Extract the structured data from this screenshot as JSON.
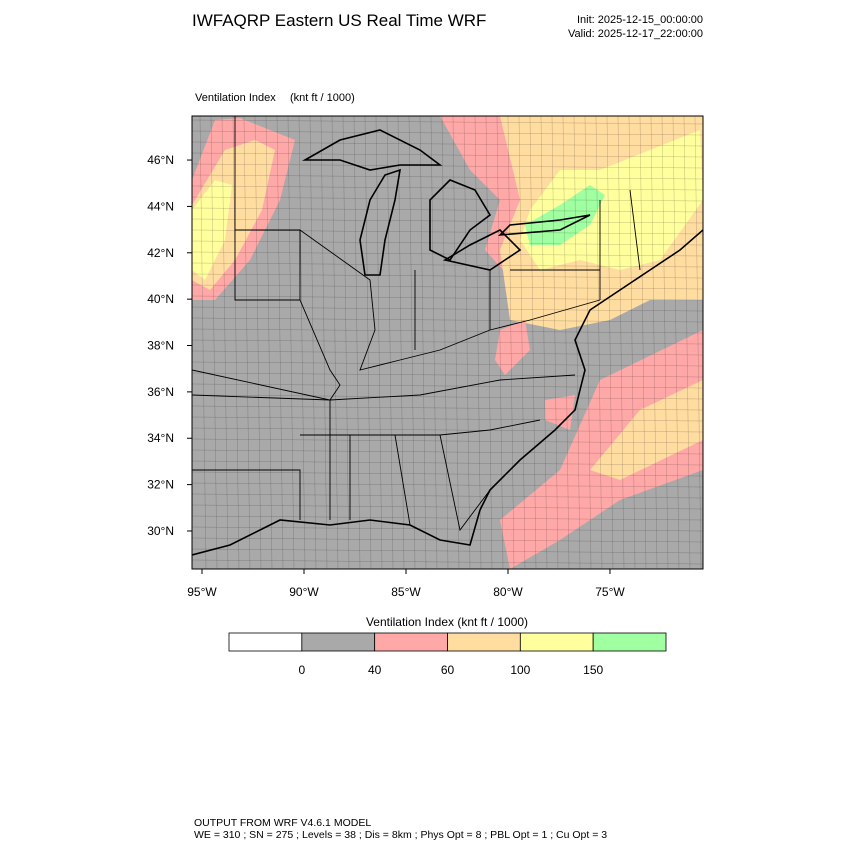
{
  "header": {
    "title": "IWFAQRP Eastern US Real Time WRF",
    "init": "Init: 2025-12-15_00:00:00",
    "valid": "Valid: 2025-12-17_22:00:00"
  },
  "map": {
    "field": "Ventilation Index",
    "units": "(knt ft / 1000)",
    "lat_lim": [
      28.36,
      47.9
    ],
    "lon_lim": [
      -95.49,
      -70.44
    ],
    "lat_ticks": [
      {
        "value": 46,
        "label": "46°N"
      },
      {
        "value": 44,
        "label": "44°N"
      },
      {
        "value": 42,
        "label": "42°N"
      },
      {
        "value": 40,
        "label": "40°N"
      },
      {
        "value": 38,
        "label": "38°N"
      },
      {
        "value": 36,
        "label": "36°N"
      },
      {
        "value": 34,
        "label": "34°N"
      },
      {
        "value": 32,
        "label": "32°N"
      },
      {
        "value": 30,
        "label": "30°N"
      }
    ],
    "lon_ticks": [
      {
        "value": -95,
        "label": "95°W"
      },
      {
        "value": -90,
        "label": "90°W"
      },
      {
        "value": -85,
        "label": "85°W"
      },
      {
        "value": -80,
        "label": "80°W"
      },
      {
        "value": -75,
        "label": "75°W"
      }
    ]
  },
  "colorbar": {
    "title": "Ventilation Index  (knt ft / 1000)",
    "levels": [
      0,
      40,
      60,
      100,
      150
    ],
    "colors": [
      "#ffffff",
      "#a9a9a9",
      "#ffa8a8",
      "#ffdca0",
      "#ffff9e",
      "#a0ffa0"
    ]
  },
  "footer": {
    "line1": "OUTPUT FROM WRF V4.6.1 MODEL",
    "line2": "WE = 310 ; SN = 275 ; Levels = 38 ; Dis = 8km ; Phys Opt = 8 ; PBL Opt = 1 ; Cu Opt = 3"
  }
}
